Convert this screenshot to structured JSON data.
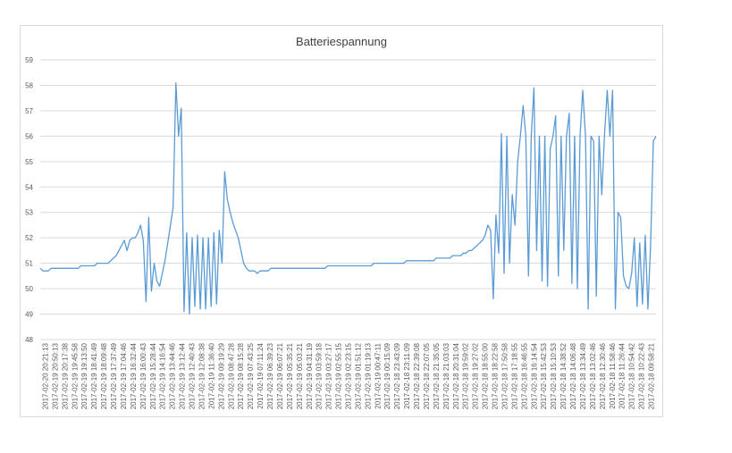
{
  "chart_data": {
    "type": "line",
    "title": "Batteriespannung",
    "xlabel": "",
    "ylabel": "",
    "ylim": [
      48,
      59
    ],
    "y_ticks": [
      "48",
      "49",
      "50",
      "51",
      "52",
      "53",
      "54",
      "55",
      "56",
      "57",
      "58",
      "59"
    ],
    "grid": "horizontal",
    "legend": "none",
    "series_color": "#5b9bd5",
    "x_ticks": [
      "2017-02-20 20:21:13",
      "2017-02-19 20:50:13",
      "2017-02-19 20:17:38",
      "2017-02-19 19:45:58",
      "2017-02-19 19:13:50",
      "2017-02-19 18:41:49",
      "2017-02-19 18:09:48",
      "2017-02-19 17:37:49",
      "2017-02-19 17:04:46",
      "2017-02-19 16:32:44",
      "2017-02-19 16:00:43",
      "2017-02-19 15:28:44",
      "2017-02-19 14:16:54",
      "2017-02-19 13:44:46",
      "2017-02-19 13:12:44",
      "2017-02-19 12:40:43",
      "2017-02-19 12:08:38",
      "2017-02-19 11:36:40",
      "2017-02-19 09:19:29",
      "2017-02-19 08:47:28",
      "2017-02-19 08:15:28",
      "2017-02-19 07:43:25",
      "2017-02-19 07:11:24",
      "2017-02-19 06:39:23",
      "2017-02-19 06:07:21",
      "2017-02-19 05:35:21",
      "2017-02-19 05:03:21",
      "2017-02-19 04:31:19",
      "2017-02-19 03:59:18",
      "2017-02-19 03:27:17",
      "2017-02-19 02:55:15",
      "2017-02-19 02:23:15",
      "2017-02-19 01:51:12",
      "2017-02-19 01:19:13",
      "2017-02-19 00:47:11",
      "2017-02-19 00:15:09",
      "2017-02-18 23:43:09",
      "2017-02-18 23:11:09",
      "2017-02-18 22:39:08",
      "2017-02-18 22:07:05",
      "2017-02-18 21:35:05",
      "2017-02-18 21:03:03",
      "2017-02-18 20:31:04",
      "2017-02-18 19:59:02",
      "2017-02-18 19:27:02",
      "2017-02-18 18:55:00",
      "2017-02-18 18:22:58",
      "2017-02-18 17:50:58",
      "2017-02-18 17:18:55",
      "2017-02-18 16:46:55",
      "2017-02-18 16:14:54",
      "2017-02-18 15:42:53",
      "2017-02-18 15:10:53",
      "2017-02-18 14:38:52",
      "2017-02-18 14:06:48",
      "2017-02-18 13:34:49",
      "2017-02-18 13:02:46",
      "2017-02-18 12:30:46",
      "2017-02-18 11:58:46",
      "2017-02-18 11:26:44",
      "2017-02-18 10:54:42",
      "2017-02-18 10:22:43",
      "2017-02-18 09:58:21"
    ],
    "series": [
      {
        "values": [
          50.8,
          50.7,
          50.7,
          50.7,
          50.8,
          50.8,
          50.8,
          50.8,
          50.8,
          50.8,
          50.8,
          50.8,
          50.8,
          50.8,
          50.8,
          50.9,
          50.9,
          50.9,
          50.9,
          50.9,
          50.9,
          51.0,
          51.0,
          51.0,
          51.0,
          51.0,
          51.1,
          51.2,
          51.3,
          51.5,
          51.7,
          51.9,
          51.5,
          51.9,
          52.0,
          52.0,
          52.2,
          52.5,
          51.9,
          49.5,
          52.8,
          49.9,
          51.0,
          50.3,
          50.1,
          50.6,
          51.1,
          51.8,
          52.5,
          53.2,
          58.1,
          56.0,
          57.1,
          49.1,
          52.2,
          49.0,
          52.0,
          49.3,
          52.1,
          49.2,
          52.0,
          49.2,
          52.0,
          49.3,
          52.2,
          49.4,
          52.3,
          51.0,
          54.6,
          53.5,
          53.0,
          52.6,
          52.3,
          52.0,
          51.5,
          51.0,
          50.8,
          50.7,
          50.7,
          50.7,
          50.6,
          50.7,
          50.7,
          50.7,
          50.7,
          50.8,
          50.8,
          50.8,
          50.8,
          50.8,
          50.8,
          50.8,
          50.8,
          50.8,
          50.8,
          50.8,
          50.8,
          50.8,
          50.8,
          50.8,
          50.8,
          50.8,
          50.8,
          50.8,
          50.8,
          50.8,
          50.9,
          50.9,
          50.9,
          50.9,
          50.9,
          50.9,
          50.9,
          50.9,
          50.9,
          50.9,
          50.9,
          50.9,
          50.9,
          50.9,
          50.9,
          50.9,
          50.9,
          51.0,
          51.0,
          51.0,
          51.0,
          51.0,
          51.0,
          51.0,
          51.0,
          51.0,
          51.0,
          51.0,
          51.0,
          51.1,
          51.1,
          51.1,
          51.1,
          51.1,
          51.1,
          51.1,
          51.1,
          51.1,
          51.1,
          51.1,
          51.2,
          51.2,
          51.2,
          51.2,
          51.2,
          51.2,
          51.3,
          51.3,
          51.3,
          51.3,
          51.4,
          51.4,
          51.5,
          51.5,
          51.6,
          51.7,
          51.8,
          51.9,
          52.1,
          52.5,
          52.3,
          49.6,
          52.9,
          51.4,
          56.1,
          50.6,
          56.0,
          51.0,
          53.7,
          52.5,
          55.0,
          56.0,
          57.2,
          56.0,
          50.5,
          56.0,
          57.9,
          51.5,
          56.0,
          50.3,
          56.0,
          50.1,
          55.5,
          56.0,
          56.8,
          50.5,
          56.0,
          51.5,
          56.0,
          56.9,
          50.2,
          56.0,
          50.0,
          56.0,
          57.8,
          56.0,
          49.2,
          56.0,
          55.8,
          49.7,
          56.0,
          53.7,
          56.0,
          57.8,
          56.0,
          57.8,
          49.2,
          53.0,
          52.8,
          50.5,
          50.1,
          50.0,
          50.6,
          52.0,
          49.3,
          51.8,
          49.4,
          52.1,
          49.2,
          51.7,
          55.8,
          56.0
        ]
      }
    ]
  }
}
